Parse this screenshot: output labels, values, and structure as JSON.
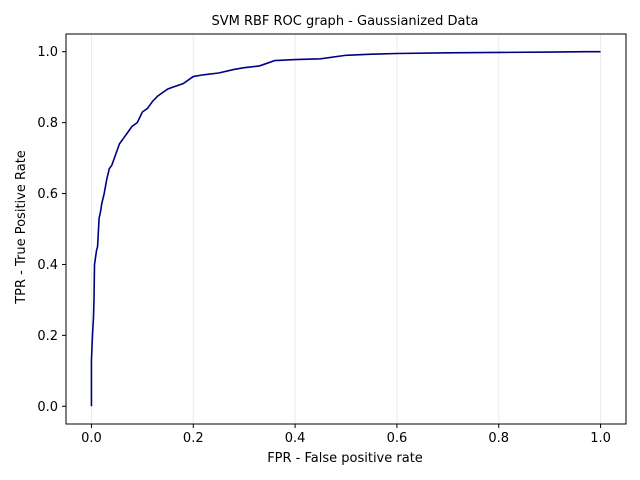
{
  "chart_data": {
    "type": "line",
    "title": "SVM RBF ROC graph - Gaussianized Data",
    "xlabel": "FPR - False positive rate",
    "ylabel": "TPR - True Positive Rate",
    "xlim": [
      -0.05,
      1.05
    ],
    "ylim": [
      -0.05,
      1.05
    ],
    "xticks": [
      "0.0",
      "0.2",
      "0.4",
      "0.6",
      "0.8",
      "1.0"
    ],
    "yticks": [
      "0.0",
      "0.2",
      "0.4",
      "0.6",
      "0.8",
      "1.0"
    ],
    "grid": "vertical, light",
    "line_color": "#000080",
    "series": [
      {
        "x": [
          0.0,
          0.0,
          0.002,
          0.004,
          0.005,
          0.006,
          0.008,
          0.01,
          0.012,
          0.015,
          0.018,
          0.02,
          0.025,
          0.03,
          0.035,
          0.04,
          0.045,
          0.05,
          0.055,
          0.06,
          0.065,
          0.07,
          0.075,
          0.08,
          0.09,
          0.1,
          0.11,
          0.12,
          0.13,
          0.14,
          0.15,
          0.16,
          0.18,
          0.2,
          0.22,
          0.25,
          0.28,
          0.3,
          0.33,
          0.36,
          0.4,
          0.45,
          0.5,
          0.55,
          0.6,
          0.7,
          0.8,
          0.9,
          0.97,
          1.0
        ],
        "y": [
          0.0,
          0.13,
          0.2,
          0.25,
          0.3,
          0.4,
          0.42,
          0.44,
          0.45,
          0.53,
          0.55,
          0.57,
          0.6,
          0.64,
          0.67,
          0.68,
          0.7,
          0.72,
          0.74,
          0.75,
          0.76,
          0.77,
          0.78,
          0.79,
          0.8,
          0.83,
          0.84,
          0.86,
          0.875,
          0.885,
          0.895,
          0.9,
          0.91,
          0.93,
          0.935,
          0.94,
          0.95,
          0.955,
          0.96,
          0.975,
          0.978,
          0.98,
          0.99,
          0.993,
          0.995,
          0.997,
          0.998,
          0.999,
          1.0,
          1.0
        ]
      }
    ]
  }
}
